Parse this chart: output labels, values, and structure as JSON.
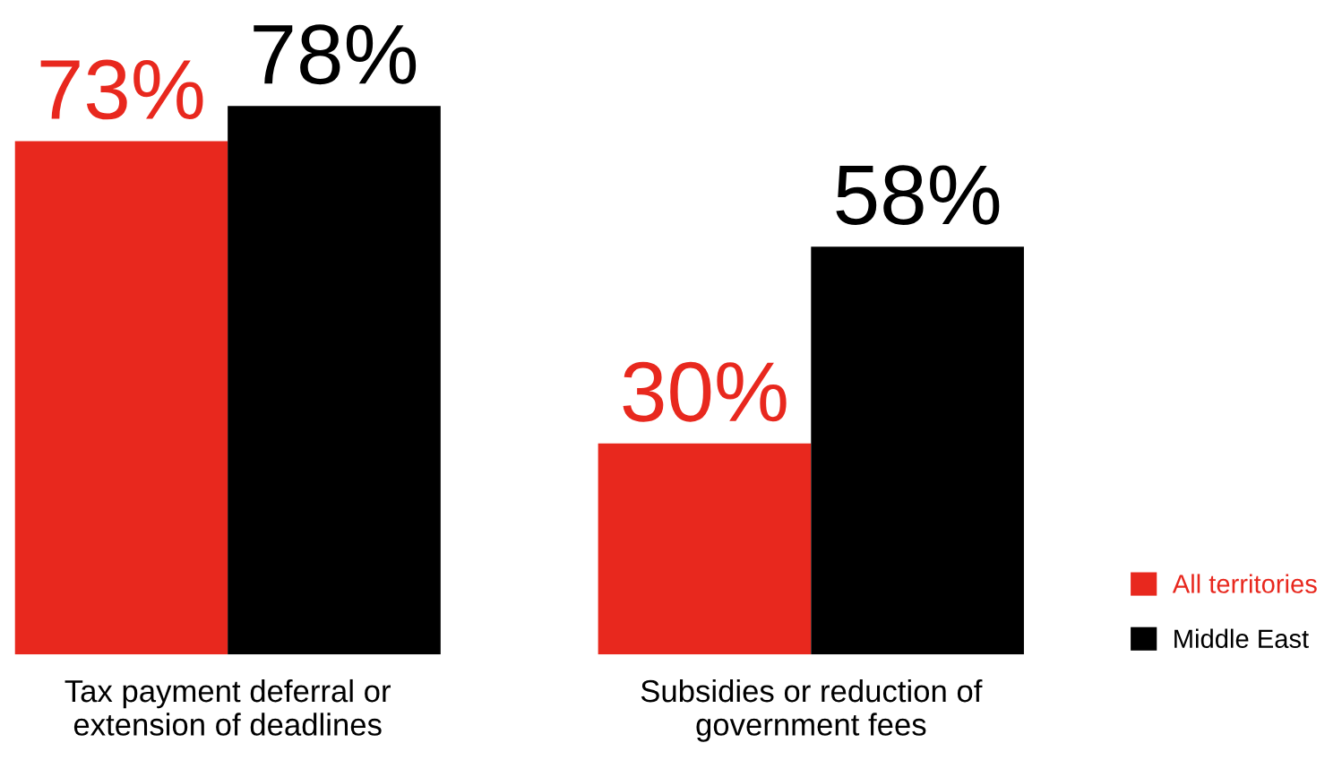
{
  "chart_data": {
    "type": "bar",
    "categories": [
      "Tax payment deferral or\nextension of deadlines",
      "Subsidies or reduction of\ngovernment fees"
    ],
    "series": [
      {
        "name": "All territories",
        "color": "#e8281e",
        "values": [
          73,
          30
        ],
        "value_labels": [
          "73%",
          "30%"
        ]
      },
      {
        "name": "Middle East",
        "color": "#000000",
        "values": [
          78,
          58
        ],
        "value_labels": [
          "78%",
          "58%"
        ]
      }
    ],
    "legend": "bottom right",
    "grid": false
  }
}
